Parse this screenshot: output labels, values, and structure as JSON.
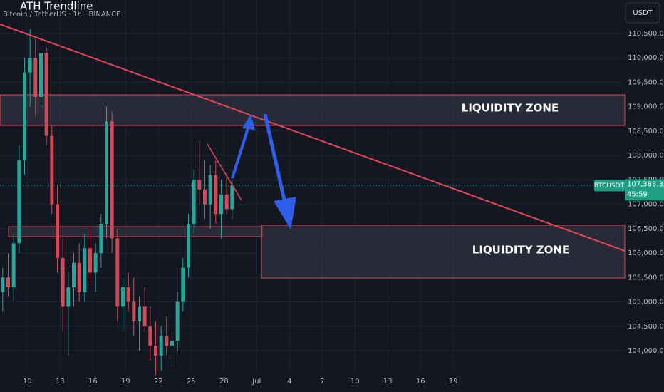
{
  "chart_data": {
    "type": "candlestick",
    "title": "ATH Trendline",
    "subtitle": "Bitcoin / TetherUS · 1h · BINANCE",
    "currency": "USDT",
    "symbol": "BTCUSDT",
    "last_price": {
      "value": 107383.33,
      "label": "107,383.33"
    },
    "countdown": "45:59",
    "annotations": [
      "LIQUIDITY ZONE",
      "LIQUIDITY ZONE"
    ],
    "up_color": "#26a69a",
    "down_color": "#d04a58",
    "grid": true,
    "xlim": [
      7.5,
      64.7
    ],
    "ylim": [
      103591,
      111186
    ],
    "xticks": [
      10,
      13,
      16,
      19,
      22,
      25,
      28,
      {
        "value": 31,
        "label": "Jul"
      },
      {
        "value": 34,
        "label": "4"
      },
      {
        "value": 37,
        "label": "7"
      },
      {
        "value": 40,
        "label": "10"
      },
      {
        "value": 43,
        "label": "13"
      },
      {
        "value": 46,
        "label": "16"
      },
      {
        "value": 49,
        "label": "19"
      }
    ],
    "yticks": [
      {
        "value": 104000,
        "label": "104,000.00"
      },
      {
        "value": 104500,
        "label": "104,500.00"
      },
      {
        "value": 105000,
        "label": "105,000.00"
      },
      {
        "value": 105500,
        "label": "105,500.00"
      },
      {
        "value": 106000,
        "label": "106,000.00"
      },
      {
        "value": 106500,
        "label": "106,500.00"
      },
      {
        "value": 107000,
        "label": "107,000.00"
      },
      {
        "value": 107500,
        "label": "107,500.00"
      },
      {
        "value": 108000,
        "label": "108,000.00"
      },
      {
        "value": 108500,
        "label": "108,500.00"
      },
      {
        "value": 109000,
        "label": "109,000.00"
      },
      {
        "value": 109500,
        "label": "109,500.00"
      },
      {
        "value": 110000,
        "label": "110,000.00"
      },
      {
        "value": 110500,
        "label": "110,500.00"
      }
    ],
    "x": [
      7.75,
      8.25,
      8.75,
      9.25,
      9.75,
      10.25,
      10.75,
      11.25,
      11.75,
      12.25,
      12.75,
      13.25,
      13.75,
      14.25,
      14.75,
      15.25,
      15.75,
      16.25,
      16.75,
      17.25,
      17.75,
      18.25,
      18.75,
      19.25,
      19.75,
      20.25,
      20.75,
      21.25,
      21.75,
      22.25,
      22.75,
      23.25,
      23.75,
      24.25,
      24.75,
      25.25,
      25.75,
      26.25,
      26.75,
      27.25,
      27.75,
      28.25,
      28.75
    ],
    "open": [
      105200,
      105500,
      105300,
      106200,
      107900,
      109700,
      110000,
      109200,
      110100,
      108400,
      107000,
      105900,
      104900,
      105300,
      105800,
      105200,
      106100,
      105600,
      106000,
      106600,
      108700,
      106300,
      104900,
      105300,
      105000,
      104600,
      104900,
      104500,
      104100,
      103900,
      104300,
      104100,
      104200,
      105000,
      105700,
      106600,
      107500,
      107300,
      107000,
      107600,
      106800,
      107200,
      106900
    ],
    "high": [
      105700,
      106000,
      106400,
      108200,
      110000,
      110600,
      110400,
      110300,
      110200,
      108600,
      107400,
      106300,
      105600,
      106000,
      106200,
      106400,
      106500,
      106200,
      106800,
      109000,
      108900,
      106500,
      105500,
      105600,
      105500,
      105100,
      105300,
      104900,
      104600,
      104500,
      104700,
      104400,
      105200,
      105900,
      106800,
      107700,
      108300,
      107900,
      107800,
      107900,
      107500,
      107600,
      107500
    ],
    "low": [
      104800,
      105100,
      105000,
      106000,
      107600,
      109000,
      108800,
      109000,
      108200,
      106800,
      105600,
      104400,
      103900,
      104900,
      105000,
      105000,
      105400,
      105200,
      105700,
      106300,
      106000,
      104600,
      104400,
      104800,
      104300,
      104000,
      104400,
      103800,
      103500,
      103600,
      103900,
      103700,
      104000,
      104800,
      105500,
      106400,
      107000,
      106700,
      106500,
      106600,
      106300,
      106800,
      106700
    ],
    "close": [
      105500,
      105300,
      106200,
      107900,
      109700,
      110000,
      109200,
      110100,
      108400,
      107000,
      105900,
      104900,
      105300,
      105800,
      105200,
      106100,
      105600,
      106000,
      106600,
      108700,
      106300,
      104900,
      105300,
      105000,
      104600,
      104900,
      104500,
      104100,
      103900,
      104300,
      104100,
      104200,
      105000,
      105700,
      106600,
      107500,
      107300,
      107000,
      107600,
      106800,
      107200,
      106900,
      107383.33
    ]
  }
}
